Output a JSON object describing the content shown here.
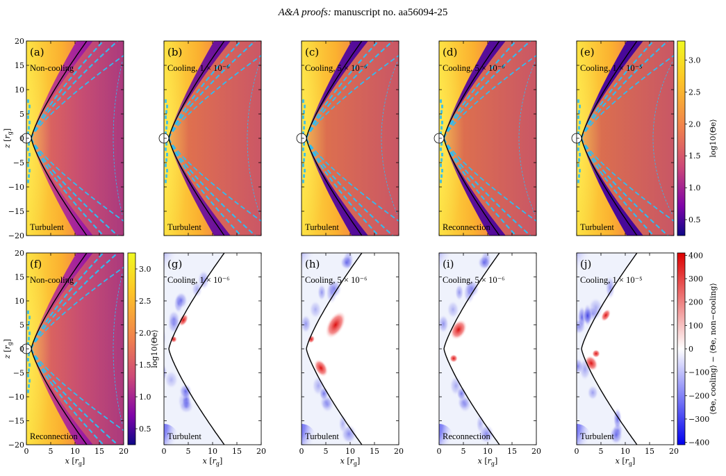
{
  "header": {
    "journal": "A&A proofs:",
    "manuscript": "manuscript no. aa56094-25"
  },
  "x_axis_label": "x [r_g]",
  "z_axis_label": "z [r_g]",
  "colorbars": [
    {
      "label": "log10⟨Θe⟩",
      "ticks": [
        "3.0",
        "2.5",
        "2.0",
        "1.5",
        "1.0",
        "0.5"
      ],
      "tick_values": [
        3.0,
        2.5,
        2.0,
        1.5,
        1.0,
        0.5
      ],
      "range": [
        0.25,
        3.3
      ]
    },
    {
      "label": "log10⟨Θe⟩",
      "ticks": [
        "3.0",
        "2.5",
        "2.0",
        "1.5",
        "1.0",
        "0.5"
      ],
      "tick_values": [
        3.0,
        2.5,
        2.0,
        1.5,
        1.0,
        0.5
      ],
      "range": [
        0.25,
        3.25
      ]
    },
    {
      "label": "⟨Θe, cooling⟩ − ⟨Θe, non−cooling⟩",
      "ticks": [
        "400",
        "300",
        "200",
        "100",
        "0",
        "−100",
        "−200",
        "−300",
        "−400"
      ],
      "tick_values": [
        400,
        300,
        200,
        100,
        0,
        -100,
        -200,
        -300,
        -400
      ],
      "range": [
        -410,
        410
      ]
    }
  ],
  "panels": [
    {
      "letter": "(a)",
      "label": "Non-cooling",
      "mode": "Turbulent",
      "kind": "temp",
      "level": 0
    },
    {
      "letter": "(b)",
      "label": "Cooling, 1 × 10⁻⁶",
      "mode": "Turbulent",
      "kind": "temp",
      "level": 1
    },
    {
      "letter": "(c)",
      "label": "Cooling, 5 × 10⁻⁶",
      "mode": "Turbulent",
      "kind": "temp",
      "level": 2
    },
    {
      "letter": "(d)",
      "label": "Cooling, 5 × 10⁻⁶",
      "mode": "Reconnection",
      "kind": "temp",
      "level": 2
    },
    {
      "letter": "(e)",
      "label": "Cooling, 1 × 10⁻⁵",
      "mode": "Turbulent",
      "kind": "temp",
      "level": 3
    },
    {
      "letter": "(f)",
      "label": "Non-cooling",
      "mode": "Reconnection",
      "kind": "temp",
      "level": 0
    },
    {
      "letter": "(g)",
      "label": "Cooling, 1 × 10⁻⁶",
      "mode": "Turbulent",
      "kind": "diff",
      "level": 1
    },
    {
      "letter": "(h)",
      "label": "Cooling, 5 × 10⁻⁶",
      "mode": "Turbulent",
      "kind": "diff",
      "level": 2
    },
    {
      "letter": "(i)",
      "label": "Cooling, 5 × 10⁻⁶",
      "mode": "Reconnection",
      "kind": "diff",
      "level": 2
    },
    {
      "letter": "(j)",
      "label": "Cooling, 1 × 10⁻⁵",
      "mode": "Turbulent",
      "kind": "diff",
      "level": 3
    }
  ],
  "chart_data": {
    "type": "heatmap",
    "x_ticks": [
      0,
      5,
      10,
      15,
      20
    ],
    "z_ticks": [
      20,
      15,
      10,
      5,
      0,
      -5,
      -10,
      -15,
      -20
    ],
    "xlim": [
      0,
      20
    ],
    "zlim": [
      -20,
      20
    ]
  },
  "colors": {
    "contour": "#33bbee",
    "boundary": "#000000",
    "hot": "#ffe000",
    "cold": "#300080",
    "positive": "#dd0000",
    "negative": "#0000ee"
  }
}
